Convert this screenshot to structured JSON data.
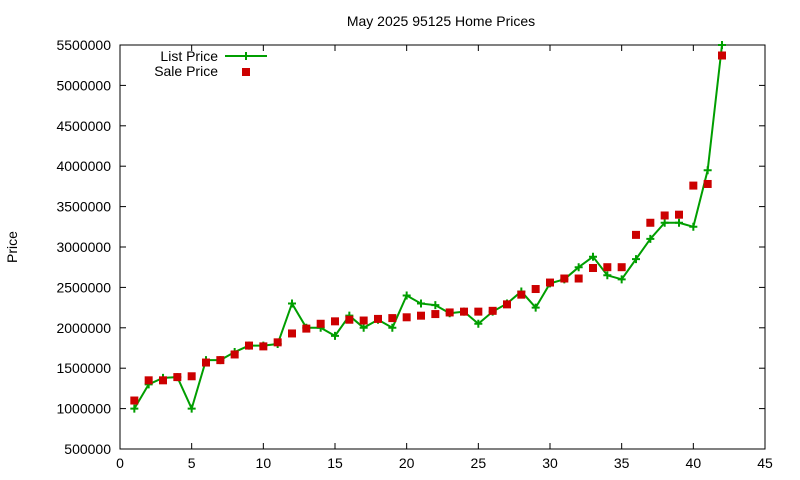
{
  "chart_data": {
    "type": "line",
    "title": "May 2025 95125 Home Prices",
    "xlabel": "",
    "ylabel": "Price",
    "xlim": [
      0,
      45
    ],
    "ylim": [
      500000,
      5500000
    ],
    "xticks": [
      0,
      5,
      10,
      15,
      20,
      25,
      30,
      35,
      40,
      45
    ],
    "yticks": [
      500000,
      1000000,
      1500000,
      2000000,
      2500000,
      3000000,
      3500000,
      4000000,
      4500000,
      5000000,
      5500000
    ],
    "grid": false,
    "legend_position": "top-left",
    "series": [
      {
        "name": "List Price",
        "style": "line-points",
        "color": "#009e00",
        "x": [
          1,
          2,
          3,
          4,
          5,
          6,
          7,
          8,
          9,
          10,
          11,
          12,
          13,
          14,
          15,
          16,
          17,
          18,
          19,
          20,
          21,
          22,
          23,
          24,
          25,
          26,
          27,
          28,
          29,
          30,
          31,
          32,
          33,
          34,
          35,
          36,
          37,
          38,
          39,
          40,
          41,
          42
        ],
        "values": [
          1000000,
          1300000,
          1380000,
          1390000,
          1000000,
          1600000,
          1600000,
          1700000,
          1780000,
          1780000,
          1800000,
          2300000,
          2000000,
          2000000,
          1900000,
          2150000,
          2000000,
          2100000,
          2000000,
          2400000,
          2300000,
          2280000,
          2180000,
          2200000,
          2050000,
          2200000,
          2300000,
          2450000,
          2250000,
          2550000,
          2600000,
          2750000,
          2880000,
          2650000,
          2600000,
          2850000,
          3100000,
          3300000,
          3300000,
          3250000,
          3950000,
          5500000
        ]
      },
      {
        "name": "Sale Price",
        "style": "points",
        "color": "#cc0000",
        "x": [
          1,
          2,
          3,
          4,
          5,
          6,
          7,
          8,
          9,
          10,
          11,
          12,
          13,
          14,
          15,
          16,
          17,
          18,
          19,
          20,
          21,
          22,
          23,
          24,
          25,
          26,
          27,
          28,
          29,
          30,
          31,
          32,
          33,
          34,
          35,
          36,
          37,
          38,
          39,
          40,
          41,
          42
        ],
        "values": [
          1100000,
          1350000,
          1350000,
          1390000,
          1400000,
          1570000,
          1600000,
          1670000,
          1780000,
          1770000,
          1820000,
          1930000,
          1990000,
          2050000,
          2080000,
          2100000,
          2090000,
          2110000,
          2120000,
          2130000,
          2150000,
          2170000,
          2190000,
          2200000,
          2200000,
          2210000,
          2290000,
          2410000,
          2480000,
          2560000,
          2610000,
          2610000,
          2740000,
          2750000,
          2750000,
          3150000,
          3300000,
          3390000,
          3400000,
          3760000,
          3780000,
          5370000
        ]
      }
    ]
  }
}
